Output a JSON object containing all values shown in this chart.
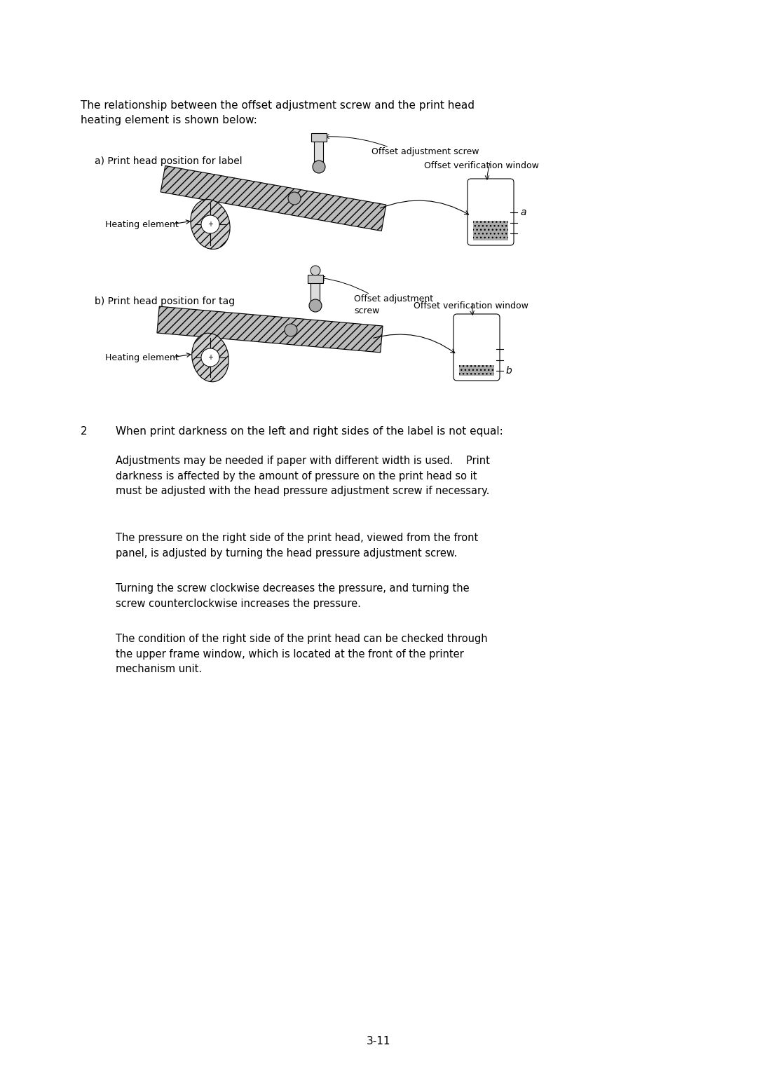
{
  "bg_color": "#ffffff",
  "text_color": "#000000",
  "page_width": 10.8,
  "page_height": 15.28,
  "intro_text": "The relationship between the offset adjustment screw and the print head\nheating element is shown below:",
  "diagram_a_label": "a) Print head position for label",
  "diagram_b_label": "b) Print head position for tag",
  "offset_adj_screw": "Offset adjustment screw",
  "offset_adj_screw_b": "Offset adjustment\nscrew",
  "offset_verif_window": "Offset verification window",
  "offset_verif_window_b": "Offset verification window",
  "heating_element": "Heating element",
  "label_a": "a",
  "label_b": "b",
  "section2_num": "2",
  "section2_text": "When print darkness on the left and right sides of the label is not equal:",
  "para1": "Adjustments may be needed if paper with different width is used.    Print\ndarkness is affected by the amount of pressure on the print head so it\nmust be adjusted with the head pressure adjustment screw if necessary.",
  "para2": "The pressure on the right side of the print head, viewed from the front\npanel, is adjusted by turning the head pressure adjustment screw.",
  "para3": "Turning the screw clockwise decreases the pressure, and turning the\nscrew counterclockwise increases the pressure.",
  "para4": "The condition of the right side of the print head can be checked through\nthe upper frame window, which is located at the front of the printer\nmechanism unit.",
  "page_num": "3-11"
}
